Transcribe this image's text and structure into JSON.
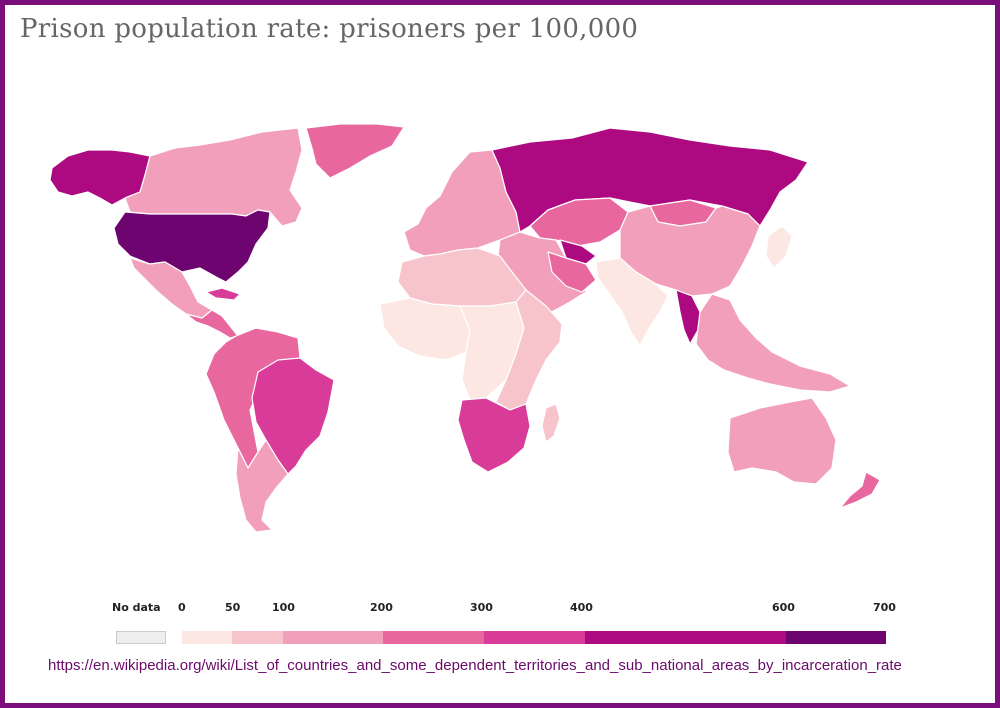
{
  "title": "Prison population rate: prisoners per 100,000",
  "legend": {
    "no_data_label": "No data",
    "no_data_color": "#eeeeee",
    "tick_labels": [
      "0",
      "50",
      "100",
      "200",
      "300",
      "400",
      "600",
      "700"
    ],
    "bins": [
      {
        "min": 0,
        "max": 50,
        "color": "#fde7e2"
      },
      {
        "min": 50,
        "max": 100,
        "color": "#f8c4cc"
      },
      {
        "min": 100,
        "max": 200,
        "color": "#f29fbb"
      },
      {
        "min": 200,
        "max": 300,
        "color": "#e9679f"
      },
      {
        "min": 300,
        "max": 400,
        "color": "#d93b98"
      },
      {
        "min": 400,
        "max": 600,
        "color": "#ad0a81"
      },
      {
        "min": 600,
        "max": 700,
        "color": "#6e0470"
      }
    ]
  },
  "map": {
    "ocean_color": "#ffffff",
    "border_color": "#ffffff",
    "regions": [
      {
        "name": "alaska",
        "bin": 5
      },
      {
        "name": "canada",
        "bin": 2
      },
      {
        "name": "greenland",
        "bin": 3
      },
      {
        "name": "usa",
        "bin": 6
      },
      {
        "name": "mexico",
        "bin": 2
      },
      {
        "name": "central-america",
        "bin": 3
      },
      {
        "name": "cuba",
        "bin": 4
      },
      {
        "name": "brazil",
        "bin": 4
      },
      {
        "name": "northern-south-america",
        "bin": 3
      },
      {
        "name": "southern-south-america",
        "bin": 2
      },
      {
        "name": "europe",
        "bin": 2
      },
      {
        "name": "russia",
        "bin": 5
      },
      {
        "name": "central-asia",
        "bin": 3
      },
      {
        "name": "middle-east",
        "bin": 2
      },
      {
        "name": "north-africa",
        "bin": 1
      },
      {
        "name": "west-africa",
        "bin": 0
      },
      {
        "name": "central-africa",
        "bin": 0
      },
      {
        "name": "east-africa",
        "bin": 1
      },
      {
        "name": "southern-africa",
        "bin": 4
      },
      {
        "name": "madagascar",
        "bin": 1
      },
      {
        "name": "china",
        "bin": 2
      },
      {
        "name": "india",
        "bin": 0
      },
      {
        "name": "thailand",
        "bin": 5
      },
      {
        "name": "southeast-asia",
        "bin": 2
      },
      {
        "name": "japan",
        "bin": 0
      },
      {
        "name": "australia",
        "bin": 2
      },
      {
        "name": "new-zealand",
        "bin": 3
      },
      {
        "name": "iran",
        "bin": 3
      },
      {
        "name": "turkmenistan",
        "bin": 5
      },
      {
        "name": "mongolia",
        "bin": 3
      }
    ]
  },
  "source_url": "https://en.wikipedia.org/wiki/List_of_countries_and_some_dependent_territories_and_sub_national_areas_by_incarceration_rate"
}
